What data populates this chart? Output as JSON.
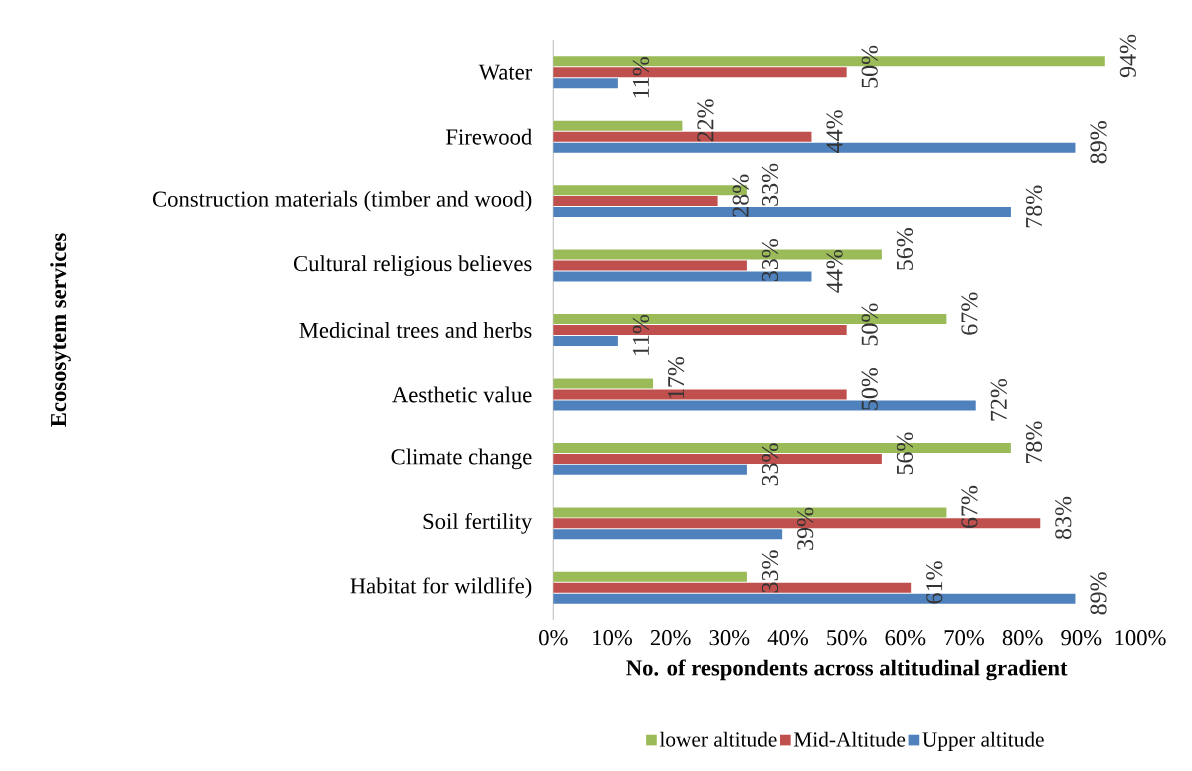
{
  "chart_data": {
    "type": "bar",
    "orientation": "horizontal",
    "xlabel": "No. of respondents across altitudinal gradient",
    "ylabel": "Ecososytem services",
    "categories": [
      "Water",
      "Firewood",
      "Construction materials (timber and wood)",
      "Cultural religious believes",
      "Medicinal trees and herbs",
      "Aesthetic value",
      "Climate change",
      "Soil fertility",
      "Habitat for wildlife)"
    ],
    "series": [
      {
        "name": "lower altitude",
        "color": "#9bbb59",
        "values": [
          94,
          22,
          33,
          56,
          67,
          17,
          78,
          67,
          33
        ],
        "value_labels": [
          "94%",
          "22%",
          "33%",
          "56%",
          "67%",
          "17%",
          "78%",
          "67%",
          "33%"
        ]
      },
      {
        "name": "Mid-Altitude",
        "color": "#c0504d",
        "values": [
          50,
          44,
          28,
          33,
          50,
          50,
          56,
          83,
          61
        ],
        "value_labels": [
          "50%",
          "44%",
          "28%",
          "33%",
          "50%",
          "50%",
          "56%",
          "83%",
          "61%"
        ]
      },
      {
        "name": "Upper altitude",
        "color": "#4f81bd",
        "values": [
          11,
          89,
          78,
          44,
          11,
          72,
          33,
          39,
          89
        ],
        "value_labels": [
          "11%",
          "89%",
          "78%",
          "44%",
          "11%",
          "72%",
          "33%",
          "39%",
          "89%"
        ]
      }
    ],
    "xlim": [
      0,
      100
    ],
    "xticks": [
      {
        "value": 0,
        "label": "0%"
      },
      {
        "value": 10,
        "label": "10%"
      },
      {
        "value": 20,
        "label": "20%"
      },
      {
        "value": 30,
        "label": "30%"
      },
      {
        "value": 40,
        "label": "40%"
      },
      {
        "value": 50,
        "label": "50%"
      },
      {
        "value": 60,
        "label": "60%"
      },
      {
        "value": 70,
        "label": "70%"
      },
      {
        "value": 80,
        "label": "80%"
      },
      {
        "value": 90,
        "label": "90%"
      },
      {
        "value": 100,
        "label": "100%"
      }
    ],
    "legend": "bottom"
  }
}
